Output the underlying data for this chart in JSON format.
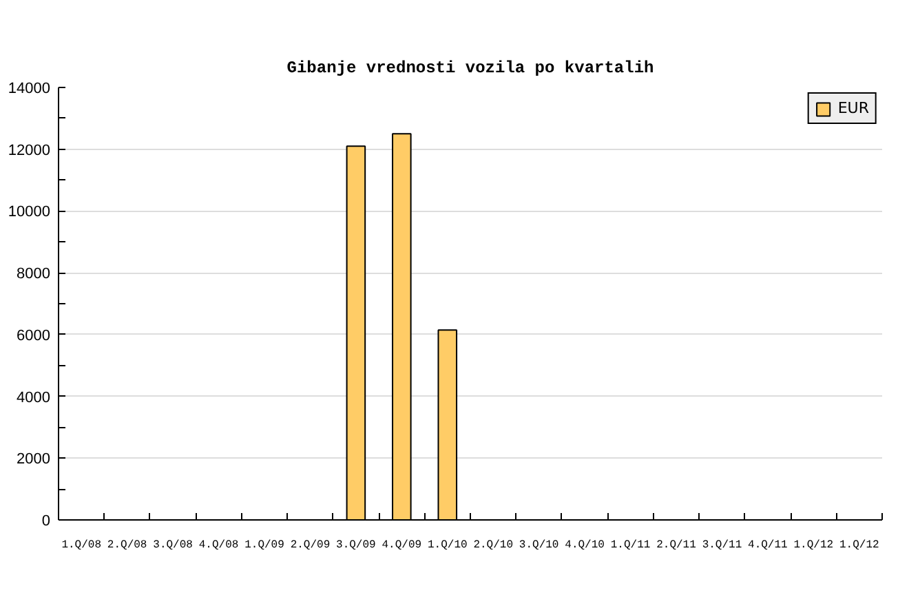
{
  "chart_data": {
    "type": "bar",
    "title": "Gibanje vrednosti vozila po kvartalih",
    "categories": [
      "1.Q/08",
      "2.Q/08",
      "3.Q/08",
      "4.Q/08",
      "1.Q/09",
      "2.Q/09",
      "3.Q/09",
      "4.Q/09",
      "1.Q/10",
      "2.Q/10",
      "3.Q/10",
      "4.Q/10",
      "1.Q/11",
      "2.Q/11",
      "3.Q/11",
      "4.Q/11",
      "1.Q/12",
      "1.Q/12"
    ],
    "series": [
      {
        "name": "EUR",
        "color": "#ffcc66",
        "values": [
          null,
          null,
          null,
          null,
          null,
          null,
          12100,
          12500,
          6150,
          null,
          null,
          null,
          null,
          null,
          null,
          null,
          null,
          null
        ]
      }
    ],
    "ylim": [
      0,
      14000
    ],
    "yticks": [
      0,
      {
        "value": 1000,
        "label": null
      },
      2000,
      {
        "value": 3000,
        "label": null
      },
      4000,
      {
        "value": 5000,
        "label": null
      },
      6000,
      {
        "value": 7000,
        "label": null
      },
      8000,
      {
        "value": 9000,
        "label": null
      },
      10000,
      {
        "value": 11000,
        "label": null
      },
      12000,
      {
        "value": 13000,
        "label": null
      },
      14000
    ],
    "grid": "y",
    "legend": "top right"
  }
}
